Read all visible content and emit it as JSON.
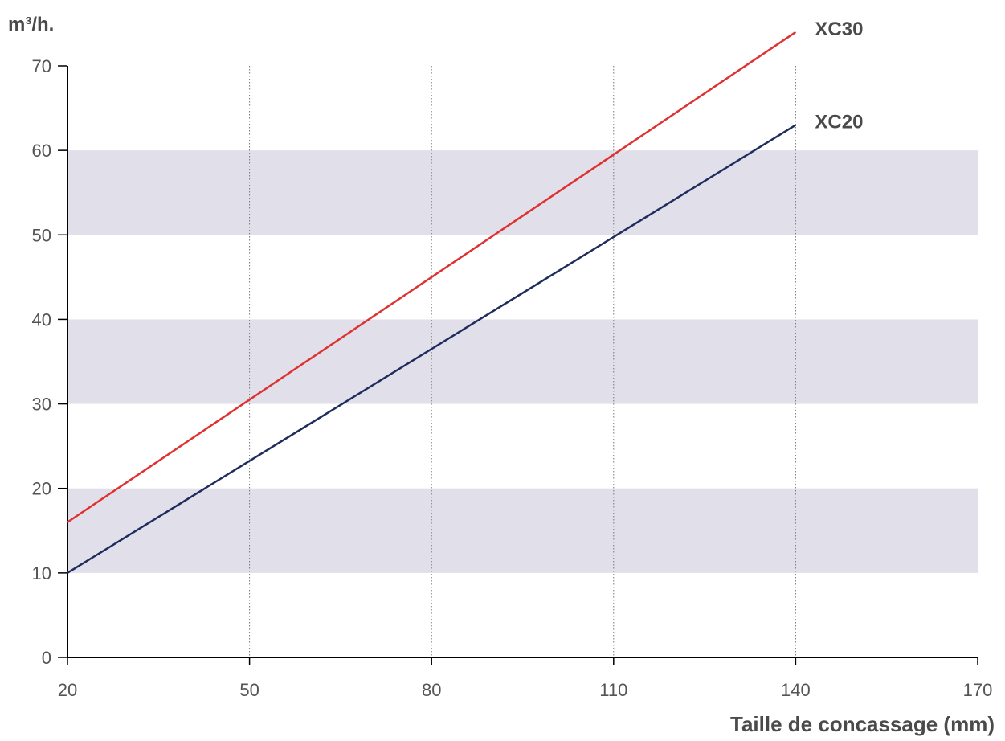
{
  "chart_data": {
    "type": "line",
    "ylabel": "m³/h.",
    "xlabel": "Taille de concassage (mm)",
    "xlim": [
      20,
      170
    ],
    "ylim": [
      0,
      70
    ],
    "x_ticks": [
      20,
      50,
      80,
      110,
      140,
      170
    ],
    "y_ticks": [
      0,
      10,
      20,
      30,
      40,
      50,
      60,
      70
    ],
    "shaded_bands": [
      [
        10,
        20
      ],
      [
        30,
        40
      ],
      [
        50,
        60
      ]
    ],
    "vertical_gridlines": [
      50,
      80,
      110,
      140
    ],
    "series": [
      {
        "name": "XC30",
        "color": "#e03131",
        "x": [
          20,
          140
        ],
        "y": [
          16,
          74
        ]
      },
      {
        "name": "XC20",
        "color": "#1f2d5c",
        "x": [
          20,
          140
        ],
        "y": [
          10,
          63
        ]
      }
    ],
    "colors": {
      "band": "#e1e0ea",
      "axis": "#000000",
      "grid": "#777777"
    }
  }
}
